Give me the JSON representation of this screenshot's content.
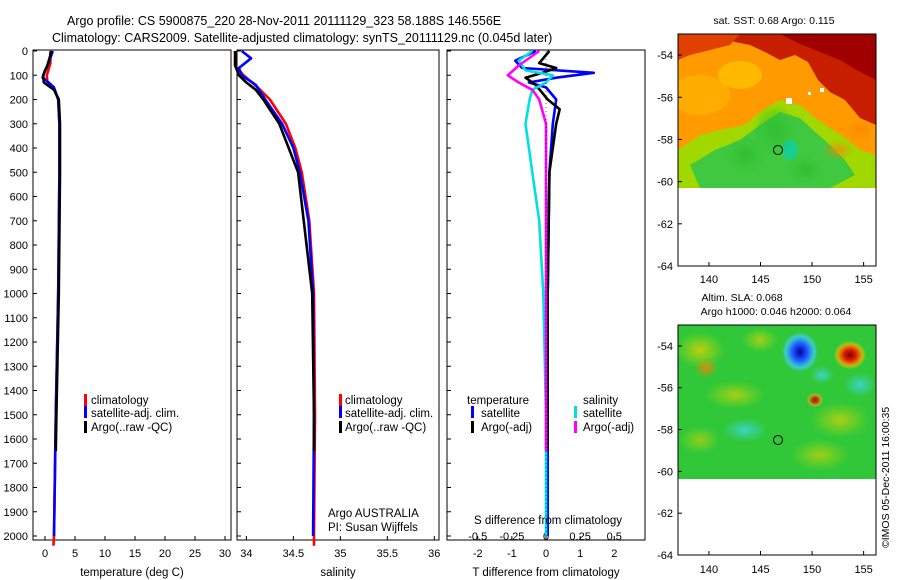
{
  "header": {
    "line1": "Argo profile: CS 5900875_220 28-Nov-2011 20111129_323 58.188S 146.556E",
    "line2": "Climatology: CARS2009. Satellite-adjusted climatology: synTS_20111129.nc (0.045d later)"
  },
  "depth_ticks": [
    "0",
    "100",
    "200",
    "300",
    "400",
    "500",
    "600",
    "700",
    "800",
    "900",
    "1000",
    "1100",
    "1200",
    "1300",
    "1400",
    "1500",
    "1600",
    "1700",
    "1800",
    "1900",
    "2000"
  ],
  "colors": {
    "climatology": "#ff0000",
    "satellite": "#0000ff",
    "argo": "#000000",
    "satellite_s": "#00e0e0",
    "argo_s": "#ff00ff"
  },
  "panels": {
    "temperature": {
      "xlabel": "temperature (deg C)",
      "xticks": [
        "0",
        "5",
        "10",
        "15",
        "20",
        "25",
        "30"
      ],
      "legend": [
        "climatology",
        "satellite-adj. clim.",
        "Argo(..raw -QC)"
      ]
    },
    "salinity": {
      "xlabel": "salinity",
      "xticks": [
        "34",
        "34.5",
        "35",
        "35.5",
        "36"
      ],
      "legend": [
        "climatology",
        "satellite-adj. clim.",
        "Argo(..raw -QC)"
      ],
      "note1": "Argo AUSTRALIA",
      "note2": "PI: Susan Wijffels"
    },
    "difference": {
      "xlabel": "T difference from climatology",
      "top_label": "S difference from climatology",
      "t_ticks": [
        "-2",
        "-1",
        "0",
        "1",
        "2"
      ],
      "s_ticks": [
        "-0.5",
        "-0.25",
        "0",
        "0.25",
        "0.5"
      ],
      "legend_t_title": "temperature",
      "legend_s_title": "salinity",
      "legend_t": [
        "satellite",
        "Argo(-adj)"
      ],
      "legend_s": [
        "satellite",
        "Argo(-adj)"
      ]
    }
  },
  "maps": {
    "sst_title": "sat. SST: 0.68 Argo: 0.115",
    "sla_title1": "Altim. SLA: 0.068",
    "sla_title2": "Argo h1000: 0.046 h2000: 0.064",
    "lat_ticks": [
      "-54",
      "-56",
      "-58",
      "-60",
      "-62",
      "-64"
    ],
    "lon_ticks": [
      "140",
      "145",
      "150",
      "155"
    ],
    "stamp": "©IMOS 05-Dec-2011 16:00:35"
  },
  "chart_data": [
    {
      "type": "line",
      "title": "",
      "xlabel": "temperature (deg C)",
      "ylabel": "",
      "xlim": [
        -2,
        31
      ],
      "ylim": [
        2050,
        0
      ],
      "series": [
        {
          "name": "climatology",
          "y": [
            0,
            50,
            100,
            130,
            160,
            200,
            300,
            500,
            1000,
            1500,
            2000,
            2040
          ],
          "x": [
            0.9,
            0.9,
            0.3,
            0.4,
            1.6,
            2.2,
            2.4,
            2.4,
            2.2,
            1.8,
            1.5,
            1.4
          ]
        },
        {
          "name": "satellite-adj. clim.",
          "y": [
            0,
            50,
            80,
            110,
            130,
            150,
            200,
            300,
            500,
            1000,
            1500,
            2000
          ],
          "x": [
            1.3,
            0.6,
            0.0,
            -0.4,
            0.6,
            1.5,
            2.2,
            2.4,
            2.4,
            2.2,
            1.8,
            1.5
          ]
        },
        {
          "name": "Argo(..raw -QC)",
          "y": [
            0,
            60,
            100,
            130,
            160,
            200,
            300,
            500,
            1000,
            1500,
            1650
          ],
          "x": [
            1.1,
            0.4,
            -0.3,
            -0.2,
            1.5,
            2.3,
            2.5,
            2.5,
            2.3,
            1.9,
            1.8
          ]
        }
      ]
    },
    {
      "type": "line",
      "title": "",
      "xlabel": "salinity",
      "ylabel": "",
      "xlim": [
        33.9,
        36.05
      ],
      "ylim": [
        2050,
        0
      ],
      "series": [
        {
          "name": "climatology",
          "y": [
            0,
            60,
            100,
            150,
            200,
            300,
            400,
            500,
            700,
            1000,
            1500,
            2000,
            2040
          ],
          "x": [
            33.88,
            33.88,
            33.97,
            34.12,
            34.25,
            34.42,
            34.52,
            34.59,
            34.67,
            34.72,
            34.73,
            34.72,
            34.72
          ]
        },
        {
          "name": "satellite-adj. clim.",
          "y": [
            0,
            30,
            70,
            100,
            140,
            200,
            300,
            400,
            500,
            700,
            1000,
            1500,
            2000
          ],
          "x": [
            33.95,
            34.05,
            33.92,
            33.95,
            34.1,
            34.2,
            34.38,
            34.5,
            34.57,
            34.66,
            34.71,
            34.72,
            34.71
          ]
        },
        {
          "name": "Argo(..raw -QC)",
          "y": [
            0,
            60,
            100,
            130,
            160,
            200,
            300,
            500,
            1000,
            1500,
            1650
          ],
          "x": [
            33.88,
            33.88,
            33.92,
            34.0,
            34.1,
            34.18,
            34.35,
            34.55,
            34.7,
            34.72,
            34.72
          ]
        }
      ]
    },
    {
      "type": "line",
      "title": "",
      "xlabel": "T difference from climatology",
      "ylabel": "",
      "xlim": [
        -2.9,
        2.9
      ],
      "ylim": [
        2050,
        0
      ],
      "series": [
        {
          "name": "satellite",
          "y": [
            0,
            40,
            70,
            90,
            110,
            130,
            150,
            200,
            300,
            500,
            1000,
            1500,
            2000
          ],
          "x": [
            -0.3,
            -0.9,
            -0.7,
            1.4,
            0.3,
            -0.5,
            0.0,
            0.3,
            0.2,
            0.1,
            0.05,
            0.05,
            0.05
          ]
        },
        {
          "name": "Argo(-adj)",
          "y": [
            0,
            50,
            70,
            90,
            110,
            140,
            200,
            240,
            300,
            500,
            1000,
            1500,
            1650
          ],
          "x": [
            0.1,
            -0.2,
            0.3,
            -0.1,
            -0.6,
            -0.3,
            0.05,
            0.4,
            0.3,
            0.1,
            0.05,
            0.05,
            0.05
          ]
        }
      ]
    },
    {
      "type": "line",
      "title": "",
      "xlabel": "S difference from climatology",
      "ylabel": "",
      "xlim": [
        -0.725,
        0.725
      ],
      "ylim": [
        2050,
        0
      ],
      "series": [
        {
          "name": "satellite",
          "y": [
            0,
            40,
            80,
            100,
            130,
            160,
            200,
            300,
            500,
            700,
            1000,
            1500,
            2000
          ],
          "x": [
            -0.1,
            -0.2,
            -0.15,
            0.05,
            0.0,
            -0.1,
            -0.12,
            -0.15,
            -0.1,
            -0.05,
            -0.02,
            0.0,
            0.0
          ]
        },
        {
          "name": "Argo(-adj)",
          "y": [
            0,
            60,
            100,
            130,
            160,
            200,
            300,
            500,
            700,
            1000,
            1500,
            1650
          ],
          "x": [
            -0.05,
            -0.2,
            -0.28,
            -0.2,
            -0.1,
            -0.05,
            0.0,
            0.0,
            0.0,
            0.0,
            0.0,
            0.0
          ]
        }
      ]
    }
  ]
}
